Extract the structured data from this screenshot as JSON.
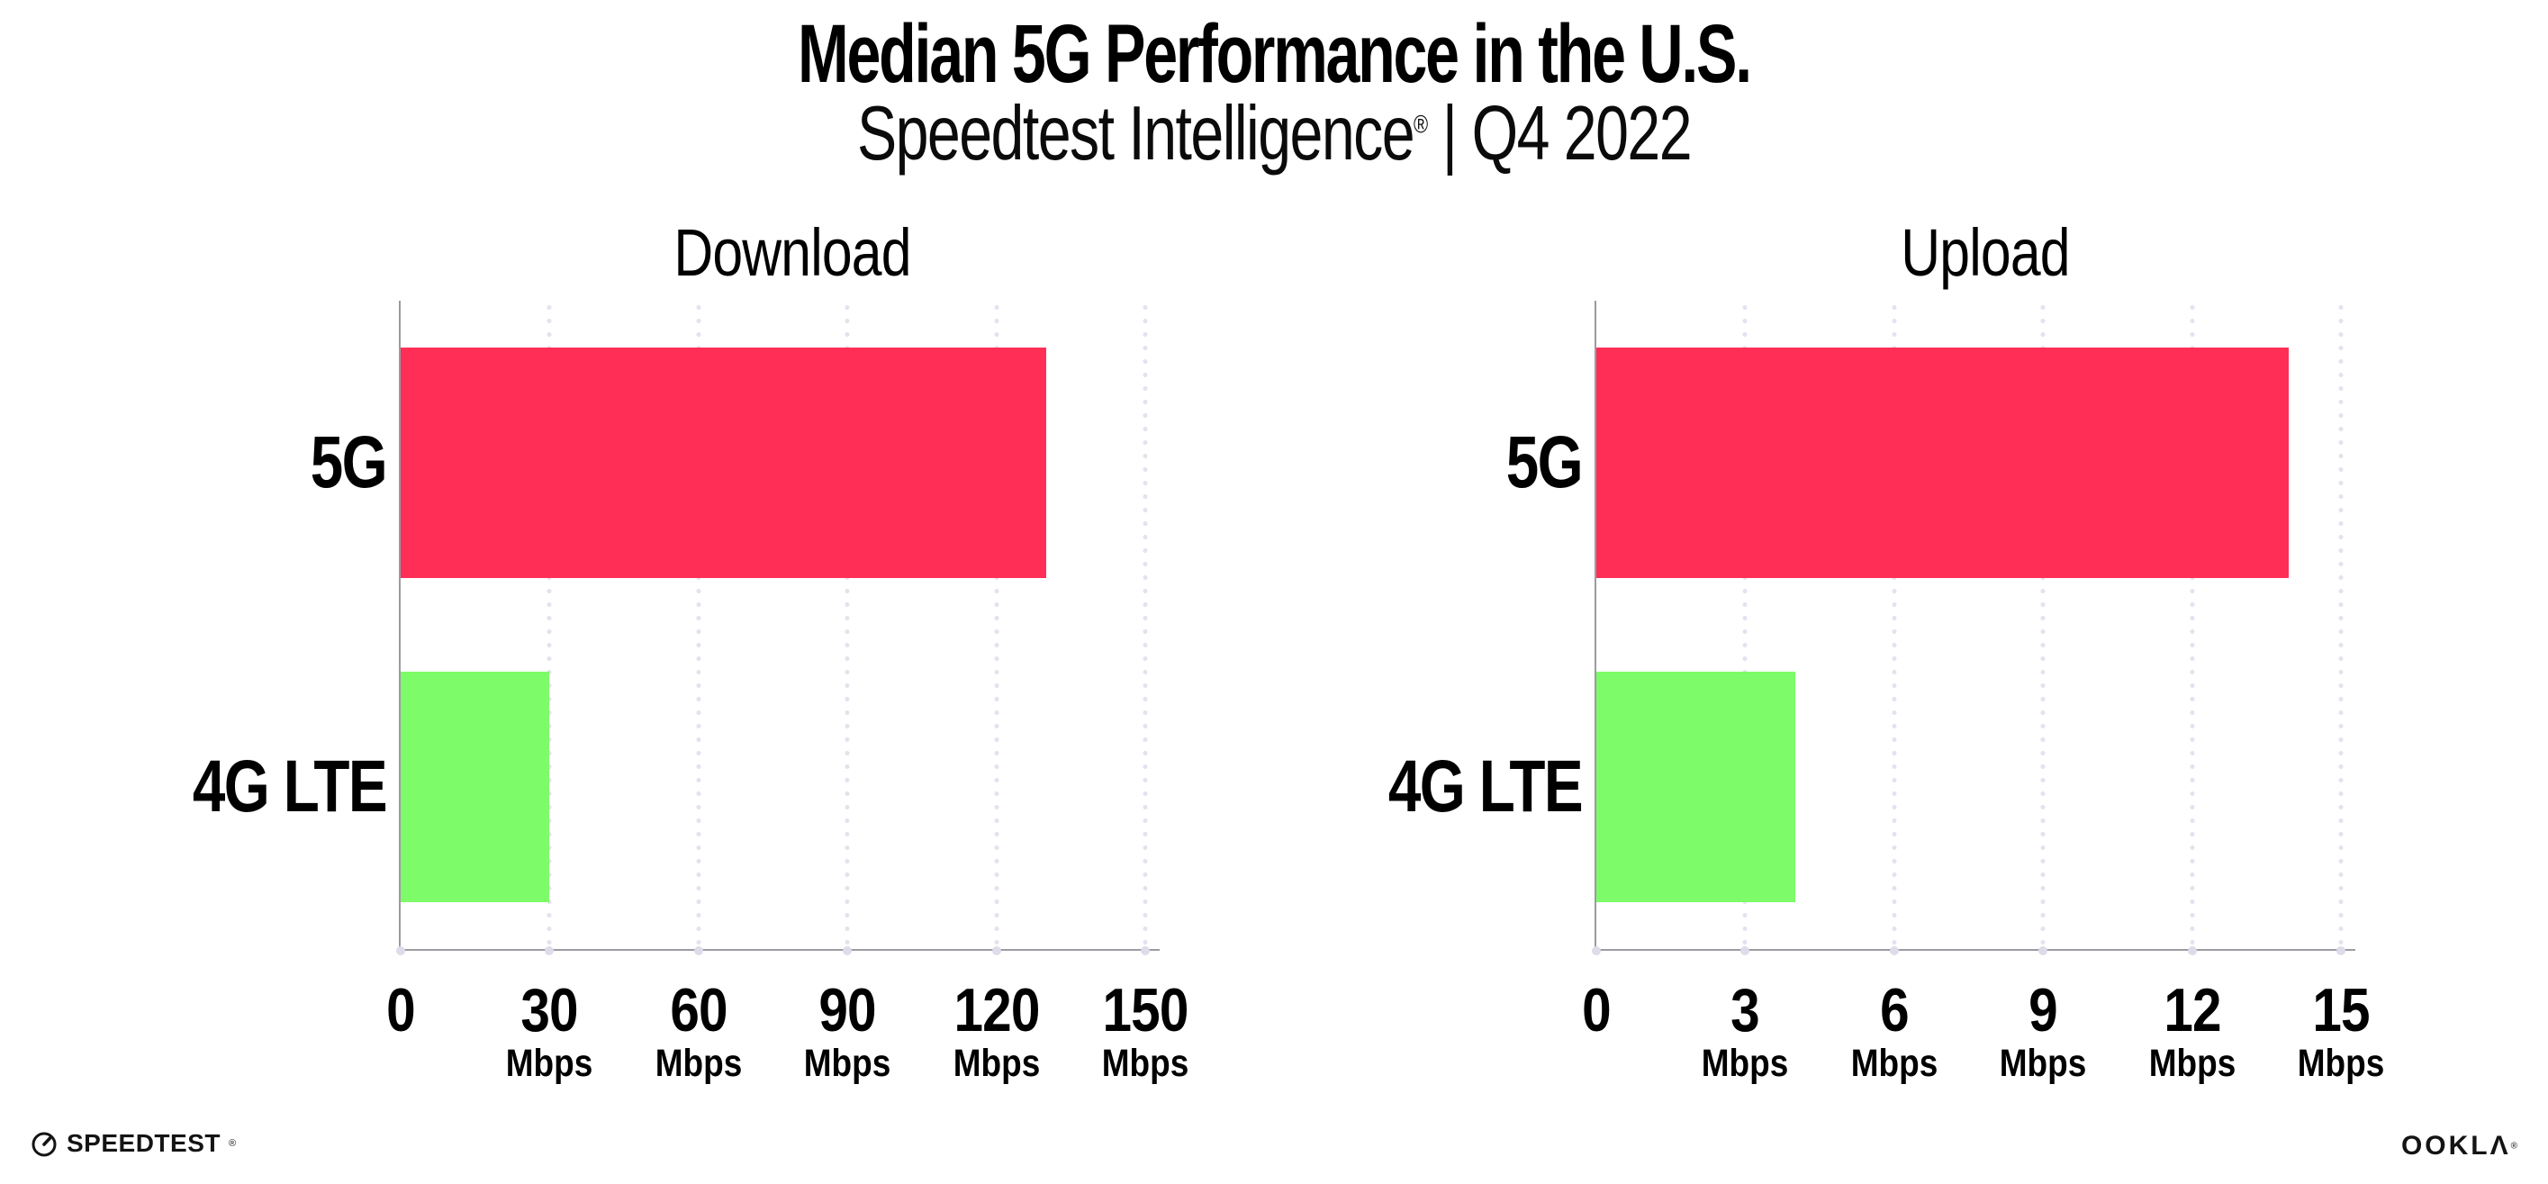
{
  "title": "Median 5G Performance in the U.S.",
  "subtitle": {
    "brand": "Speedtest Intelligence",
    "registered": "®",
    "separator": "|",
    "period": "Q4 2022"
  },
  "footer": {
    "speedtest_label": "SPEEDTEST",
    "speedtest_mark": "®",
    "ookla_label": "OOKLΛ",
    "ookla_mark": "®"
  },
  "colors": {
    "bar_5g": "#FF2E57",
    "bar_4g_lte": "#7DFB68",
    "gridline": "#e3e3f0",
    "axis": "#9b9ba3",
    "text": "#000000"
  },
  "chart_data": [
    {
      "type": "bar",
      "orientation": "horizontal",
      "title": "Download",
      "categories": [
        "5G",
        "4G LTE"
      ],
      "values": [
        130,
        30
      ],
      "unit": "Mbps",
      "xlim": [
        0,
        150
      ],
      "xticks": [
        0,
        30,
        60,
        90,
        120,
        150
      ],
      "grid": "dotted-vertical",
      "legend": "none",
      "bar_colors": [
        "#FF2E57",
        "#7DFB68"
      ]
    },
    {
      "type": "bar",
      "orientation": "horizontal",
      "title": "Upload",
      "categories": [
        "5G",
        "4G LTE"
      ],
      "values": [
        13.95,
        4
      ],
      "unit": "Mbps",
      "xlim": [
        0,
        15
      ],
      "xticks": [
        0,
        3,
        6,
        9,
        12,
        15
      ],
      "grid": "dotted-vertical",
      "legend": "none",
      "bar_colors": [
        "#FF2E57",
        "#7DFB68"
      ]
    }
  ]
}
